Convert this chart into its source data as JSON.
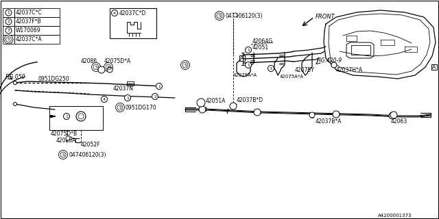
{
  "bg_color": "#ffffff",
  "line_color": "#000000",
  "parts_list": [
    {
      "num": "1",
      "part": "42037C*C"
    },
    {
      "num": "2",
      "part": "42037F*B"
    },
    {
      "num": "3",
      "part": "W170069"
    },
    {
      "num": "5",
      "part": "42037C*A"
    }
  ],
  "part4_label": "42037C*D",
  "fig_labels": [
    "FIG.050",
    "FIG.420-9"
  ],
  "diagram_num": "A4200001373",
  "front_label": "FRONT"
}
